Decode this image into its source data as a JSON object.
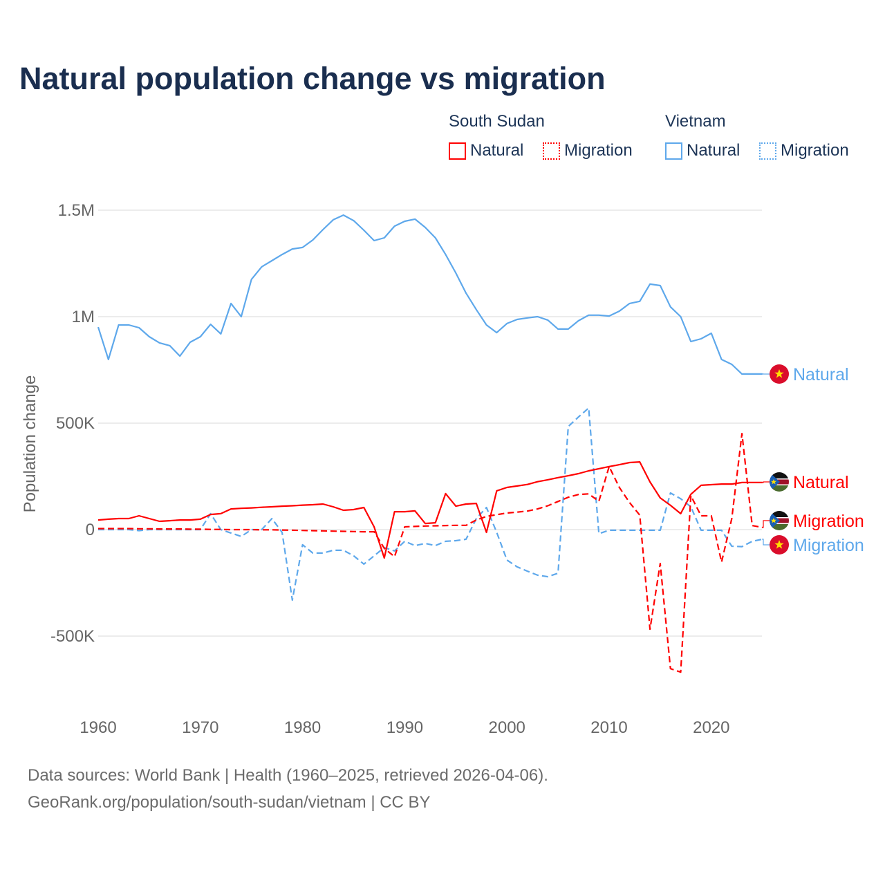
{
  "chart_data": {
    "type": "line",
    "title": "Natural population change vs migration",
    "xlabel": "",
    "ylabel": "Population change",
    "xlim": [
      1960,
      2025
    ],
    "ylim": [
      -750000,
      1600000
    ],
    "grid": true,
    "x_ticks": [
      1960,
      1970,
      1980,
      1990,
      2000,
      2010,
      2020
    ],
    "x_tick_labels": [
      "1960",
      "1970",
      "1980",
      "1990",
      "2000",
      "2010",
      "2020"
    ],
    "y_ticks": [
      1500000,
      1000000,
      500000,
      0,
      -500000
    ],
    "y_tick_labels": [
      "1.5M",
      "1M",
      "500K",
      "0",
      "-500K"
    ],
    "legend_position": "top-right",
    "x": [
      1960,
      1961,
      1962,
      1963,
      1964,
      1965,
      1966,
      1967,
      1968,
      1969,
      1970,
      1971,
      1972,
      1973,
      1974,
      1975,
      1976,
      1977,
      1978,
      1979,
      1980,
      1981,
      1982,
      1983,
      1984,
      1985,
      1986,
      1987,
      1988,
      1989,
      1990,
      1991,
      1992,
      1993,
      1994,
      1995,
      1996,
      1997,
      1998,
      1999,
      2000,
      2001,
      2002,
      2003,
      2004,
      2005,
      2006,
      2007,
      2008,
      2009,
      2010,
      2011,
      2012,
      2013,
      2014,
      2015,
      2016,
      2017,
      2018,
      2019,
      2020,
      2021,
      2022,
      2023,
      2024,
      2025
    ],
    "series": [
      {
        "id": "vn-natural",
        "country": "Vietnam",
        "name": "Natural",
        "color": "#5ea8eb",
        "dash": false,
        "end_label": "Natural",
        "flag": "vietnam",
        "values": [
          951000,
          799000,
          961000,
          961000,
          948000,
          906000,
          877000,
          864000,
          815000,
          880000,
          906000,
          964000,
          919000,
          1062000,
          1000000,
          1175000,
          1234000,
          1263000,
          1292000,
          1318000,
          1325000,
          1360000,
          1409000,
          1455000,
          1477000,
          1451000,
          1406000,
          1357000,
          1370000,
          1425000,
          1448000,
          1458000,
          1419000,
          1370000,
          1292000,
          1205000,
          1110000,
          1033000,
          961000,
          925000,
          968000,
          987000,
          994000,
          1000000,
          984000,
          942000,
          942000,
          981000,
          1007000,
          1007000,
          1003000,
          1026000,
          1062000,
          1072000,
          1153000,
          1146000,
          1046000,
          1000000,
          883000,
          896000,
          922000,
          799000,
          776000,
          731000,
          731000,
          731000
        ]
      },
      {
        "id": "vn-migration",
        "country": "Vietnam",
        "name": "Migration",
        "color": "#5ea8eb",
        "dash": true,
        "end_label": "Migration",
        "flag": "vietnam",
        "values": [
          0,
          0,
          0,
          0,
          -5000,
          0,
          0,
          0,
          0,
          0,
          0,
          75000,
          0,
          -16000,
          -32000,
          0,
          0,
          52000,
          -13000,
          -331000,
          -71000,
          -110000,
          -110000,
          -97000,
          -97000,
          -123000,
          -162000,
          -123000,
          -84000,
          -100000,
          -55000,
          -75000,
          -65000,
          -75000,
          -55000,
          -52000,
          -45000,
          52000,
          104000,
          -13000,
          -143000,
          -175000,
          -195000,
          -214000,
          -221000,
          -205000,
          484000,
          529000,
          571000,
          -19000,
          -3000,
          -3000,
          -3000,
          -3000,
          -3000,
          -3000,
          172000,
          145000,
          107000,
          -3000,
          -3000,
          -3000,
          -78000,
          -80000,
          -55000,
          -45000
        ]
      },
      {
        "id": "ss-natural",
        "country": "South Sudan",
        "name": "Natural",
        "color": "#ff0000",
        "dash": false,
        "end_label": "Natural",
        "flag": "south-sudan",
        "values": [
          45000,
          49000,
          52000,
          52000,
          65000,
          52000,
          39000,
          42000,
          45000,
          45000,
          49000,
          71000,
          75000,
          97000,
          100000,
          102000,
          105000,
          107000,
          110000,
          112000,
          115000,
          117000,
          120000,
          107000,
          91000,
          94000,
          104000,
          13000,
          -133000,
          84000,
          84000,
          88000,
          29000,
          32000,
          169000,
          110000,
          120000,
          123000,
          -13000,
          182000,
          198000,
          205000,
          212000,
          225000,
          234000,
          244000,
          253000,
          263000,
          276000,
          286000,
          296000,
          305000,
          315000,
          318000,
          224000,
          149000,
          114000,
          75000,
          166000,
          208000,
          211000,
          214000,
          214000,
          221000,
          221000,
          221000
        ]
      },
      {
        "id": "ss-migration",
        "country": "South Sudan",
        "name": "Migration",
        "color": "#ff0000",
        "dash": true,
        "end_label": "Migration",
        "flag": "south-sudan",
        "values": [
          5000,
          5000,
          5000,
          5000,
          4000,
          4000,
          3000,
          3000,
          3000,
          2000,
          2000,
          1000,
          1000,
          0,
          0,
          0,
          -1000,
          -1000,
          -2000,
          -3000,
          -4000,
          -5000,
          -6000,
          -7000,
          -8000,
          -9000,
          -10000,
          -10000,
          -88000,
          -127000,
          13000,
          15000,
          17000,
          18000,
          19000,
          20000,
          20000,
          45000,
          62000,
          70000,
          78000,
          82000,
          87000,
          97000,
          112000,
          132000,
          152000,
          165000,
          168000,
          133000,
          296000,
          198000,
          127000,
          68000,
          -468000,
          -159000,
          -653000,
          -669000,
          159000,
          65000,
          65000,
          -153000,
          52000,
          451000,
          19000,
          10000
        ]
      }
    ]
  },
  "legend": {
    "groups": [
      {
        "country": "South Sudan",
        "items": [
          {
            "label": "Natural"
          },
          {
            "label": "Migration"
          }
        ]
      },
      {
        "country": "Vietnam",
        "items": [
          {
            "label": "Natural"
          },
          {
            "label": "Migration"
          }
        ]
      }
    ]
  },
  "colors": {
    "south_sudan": "#ff0000",
    "vietnam": "#5ea8eb",
    "title": "#1a2e4f",
    "grid": "#e6e6e6",
    "axis_text": "#666666"
  },
  "footer": {
    "line1": "Data sources: World Bank | Health (1960–2025, retrieved 2026-04-06).",
    "line2": "GeoRank.org/population/south-sudan/vietnam | CC BY"
  }
}
